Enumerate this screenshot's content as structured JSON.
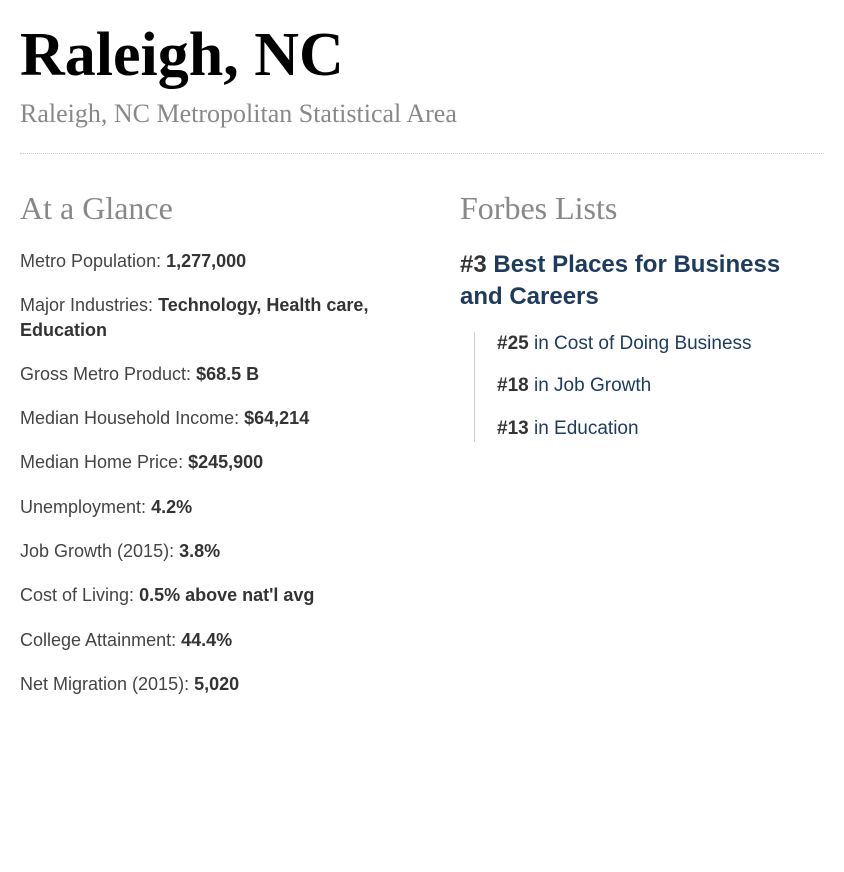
{
  "header": {
    "title": "Raleigh, NC",
    "subtitle": "Raleigh, NC Metropolitan Statistical Area"
  },
  "glance": {
    "heading": "At a Glance",
    "stats": [
      {
        "label": "Metro Population: ",
        "value": "1,277,000"
      },
      {
        "label": "Major Industries: ",
        "value": "Technology, Health care, Education"
      },
      {
        "label": "Gross Metro Product: ",
        "value": "$68.5 B"
      },
      {
        "label": "Median Household Income: ",
        "value": "$64,214"
      },
      {
        "label": "Median Home Price: ",
        "value": "$245,900"
      },
      {
        "label": "Unemployment: ",
        "value": "4.2%"
      },
      {
        "label": "Job Growth (2015): ",
        "value": "3.8%"
      },
      {
        "label": "Cost of Living: ",
        "value": "0.5% above nat'l avg"
      },
      {
        "label": "College Attainment: ",
        "value": "44.4%"
      },
      {
        "label": "Net Migration (2015): ",
        "value": "5,020"
      }
    ]
  },
  "forbes": {
    "heading": "Forbes Lists",
    "main": {
      "rank": "#3",
      "title": "Best Places for Business and Careers"
    },
    "subs": [
      {
        "rank": "#25",
        "text": " in Cost of Doing Business"
      },
      {
        "rank": "#18",
        "text": " in Job Growth"
      },
      {
        "rank": "#13",
        "text": " in Education"
      }
    ]
  },
  "colors": {
    "title_color": "#000000",
    "subtitle_color": "#888888",
    "heading_color": "#888888",
    "text_color": "#444444",
    "bold_color": "#333333",
    "link_color": "#1d3a5f",
    "divider_color": "#cccccc",
    "background": "#ffffff"
  }
}
